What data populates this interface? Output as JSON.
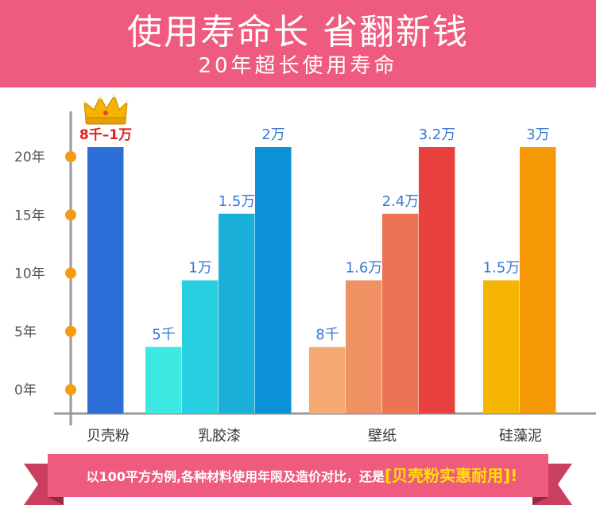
{
  "header": {
    "title": "使用寿命长 省翻新钱",
    "subtitle": "20年超长使用寿命"
  },
  "footer": {
    "text_prefix": "以100平方为例,各种材料使用年限及造价对比，还是",
    "text_highlight": "[贝壳粉实惠耐用]!"
  },
  "colors": {
    "header_bg": "#ee5b7e",
    "ribbon": "#ee5b7e",
    "axis": "#999999",
    "axis_dot": "#f39c12",
    "value_label": "#3a78d8",
    "crown": "#f4b400"
  },
  "chart_data": {
    "type": "bar",
    "y_ticks": [
      "0年",
      "5年",
      "10年",
      "15年",
      "20年"
    ],
    "ylim": [
      0,
      20
    ],
    "ylabel": "",
    "xlabel": "",
    "title": "",
    "categories": [
      "贝壳粉",
      "乳胶漆",
      "壁纸",
      "硅藻泥"
    ],
    "groups": [
      {
        "category": "贝壳粉",
        "bars": [
          {
            "years": 20,
            "label": "8千–1万",
            "color": "#2d6fd8",
            "highlight": true
          }
        ]
      },
      {
        "category": "乳胶漆",
        "bars": [
          {
            "years": 5,
            "label": "5千",
            "color": "#3ce8e1"
          },
          {
            "years": 10,
            "label": "1万",
            "color": "#27cfe0"
          },
          {
            "years": 15,
            "label": "1.5万",
            "color": "#1bb0da"
          },
          {
            "years": 20,
            "label": "2万",
            "color": "#0a91d8"
          }
        ]
      },
      {
        "category": "壁纸",
        "bars": [
          {
            "years": 5,
            "label": "8千",
            "color": "#f5aa73"
          },
          {
            "years": 10,
            "label": "1.6万",
            "color": "#f09163"
          },
          {
            "years": 15,
            "label": "2.4万",
            "color": "#ec7454"
          },
          {
            "years": 20,
            "label": "3.2万",
            "color": "#e8403e"
          }
        ]
      },
      {
        "category": "硅藻泥",
        "bars": [
          {
            "years": 10,
            "label": "1.5万",
            "color": "#f5b500"
          },
          {
            "years": 20,
            "label": "3万",
            "color": "#f59a06"
          }
        ]
      }
    ]
  }
}
